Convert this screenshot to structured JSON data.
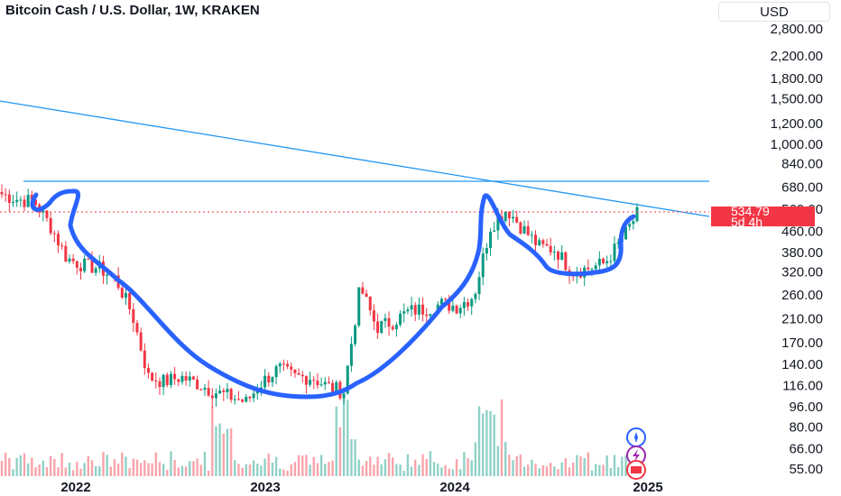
{
  "header": {
    "title": "Bitcoin Cash / U.S. Dollar, 1W, KRAKEN",
    "currency": "USD"
  },
  "price_badge": {
    "price": "534.79",
    "countdown": "5d 4h",
    "color": "#f23645"
  },
  "colors": {
    "up": "#089981",
    "down": "#f23645",
    "trendline": "#2196f3",
    "pattern": "#2962ff"
  },
  "chart_data": {
    "type": "candlestick",
    "y_scale": "log",
    "y_ticks": [
      "2,800.00",
      "2,200.00",
      "1,800.00",
      "1,500.00",
      "1,200.00",
      "1,000.00",
      "840.00",
      "680.00",
      "560.00",
      "460.00",
      "380.00",
      "320.00",
      "260.00",
      "210.00",
      "170.00",
      "140.00",
      "116.00",
      "96.00",
      "80.00",
      "66.00",
      "55.00"
    ],
    "x_ticks": [
      "2022",
      "2023",
      "2024",
      "2025"
    ],
    "approx_weekly_close": [
      [
        "2021-09",
        640
      ],
      [
        "2021-10",
        610
      ],
      [
        "2021-11",
        600
      ],
      [
        "2021-12",
        480
      ],
      [
        "2022-01",
        360
      ],
      [
        "2022-02",
        340
      ],
      [
        "2022-03",
        330
      ],
      [
        "2022-04",
        300
      ],
      [
        "2022-05",
        220
      ],
      [
        "2022-06",
        125
      ],
      [
        "2022-07",
        120
      ],
      [
        "2022-08",
        125
      ],
      [
        "2022-09",
        118
      ],
      [
        "2022-10",
        110
      ],
      [
        "2022-11",
        105
      ],
      [
        "2022-12",
        100
      ],
      [
        "2023-01",
        120
      ],
      [
        "2023-02",
        135
      ],
      [
        "2023-03",
        125
      ],
      [
        "2023-04",
        125
      ],
      [
        "2023-05",
        115
      ],
      [
        "2023-06",
        110
      ],
      [
        "2023-07",
        280
      ],
      [
        "2023-08",
        195
      ],
      [
        "2023-09",
        205
      ],
      [
        "2023-10",
        225
      ],
      [
        "2023-11",
        230
      ],
      [
        "2023-12",
        240
      ],
      [
        "2024-01",
        235
      ],
      [
        "2024-02",
        260
      ],
      [
        "2024-03",
        480
      ],
      [
        "2024-04",
        560
      ],
      [
        "2024-05",
        470
      ],
      [
        "2024-06",
        400
      ],
      [
        "2024-07",
        390
      ],
      [
        "2024-08",
        320
      ],
      [
        "2024-09",
        330
      ],
      [
        "2024-10",
        345
      ],
      [
        "2024-11",
        420
      ],
      [
        "2024-12",
        535
      ]
    ],
    "volume": "shown as histogram at bottom",
    "annotations": [
      "horizontal resistance ~690",
      "descending trendline",
      "cup and handle drawing"
    ]
  }
}
